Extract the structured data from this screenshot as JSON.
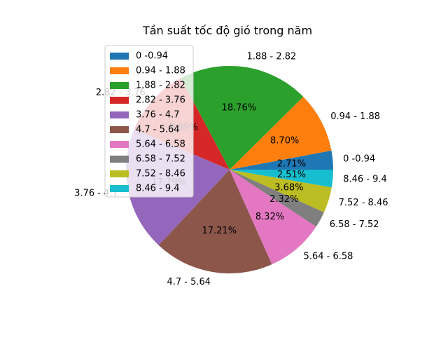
{
  "chart_data": {
    "type": "pie",
    "title": "Tần suất tốc độ gió trong năm",
    "categories": [
      "0 -0.94",
      "0.94 - 1.88",
      "1.88 - 2.82",
      "2.82 - 3.76",
      "3.76 - 4.7",
      "4.7 - 5.64",
      "5.64 - 6.58",
      "6.58 - 7.52",
      "7.52 - 8.46",
      "8.46 - 9.4"
    ],
    "values": [
      2.71,
      8.7,
      18.76,
      9.99,
      17.79,
      17.21,
      8.32,
      2.32,
      3.68,
      2.51
    ],
    "percent_labels": [
      "2.71%",
      "8.70%",
      "18.76%",
      "9.99%",
      "17.79%",
      "17.21%",
      "8.32%",
      "2.32%",
      "3.68%",
      "2.51%"
    ],
    "colors": [
      "#1f77b4",
      "#ff7f0e",
      "#2ca02c",
      "#d62728",
      "#9467bd",
      "#8c564b",
      "#e377c2",
      "#7f7f7f",
      "#bcbd22",
      "#17becf"
    ],
    "legend_position": "upper-left",
    "start_angle": "0 degrees, counterclockwise"
  }
}
